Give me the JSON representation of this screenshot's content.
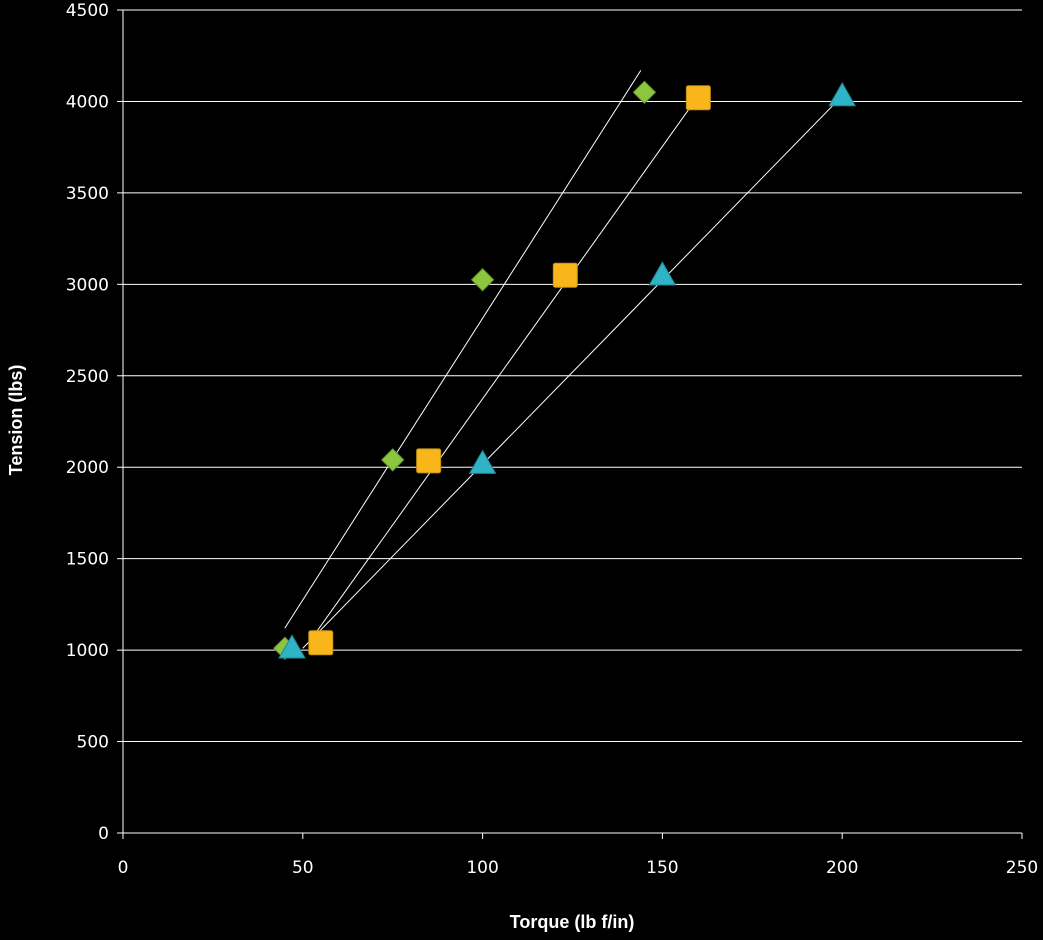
{
  "chart_data": {
    "type": "scatter",
    "title": "",
    "xlabel": "Torque (lb f/in)",
    "ylabel": "Tension (lbs)",
    "xlim": [
      0,
      250
    ],
    "ylim": [
      0,
      4500
    ],
    "x_ticks": [
      "0",
      "50",
      "100",
      "150",
      "200",
      "250"
    ],
    "y_ticks": [
      "0",
      "500",
      "1000",
      "1500",
      "2000",
      "2500",
      "3000",
      "3500",
      "4000",
      "4500"
    ],
    "grid": "horizontal",
    "legend": "none",
    "background": "#000000",
    "axis_color": "#ffffff",
    "series": [
      {
        "marker": "diamond",
        "color": "#8cc63f",
        "points": [
          [
            45,
            1010
          ],
          [
            75,
            2040
          ],
          [
            100,
            3025
          ],
          [
            145,
            4050
          ]
        ],
        "trendline": [
          [
            45,
            1120
          ],
          [
            144,
            4170
          ]
        ]
      },
      {
        "marker": "square",
        "color": "#f9b61a",
        "points": [
          [
            55,
            1040
          ],
          [
            85,
            2035
          ],
          [
            123,
            3050
          ],
          [
            160,
            4020
          ]
        ],
        "trendline": [
          [
            52,
            1050
          ],
          [
            160,
            4030
          ]
        ]
      },
      {
        "marker": "triangle",
        "color": "#2fb3c7",
        "points": [
          [
            47,
            1010
          ],
          [
            100,
            2020
          ],
          [
            150,
            3050
          ],
          [
            200,
            4030
          ]
        ],
        "trendline": [
          [
            50,
            1010
          ],
          [
            200,
            4030
          ]
        ]
      }
    ]
  }
}
